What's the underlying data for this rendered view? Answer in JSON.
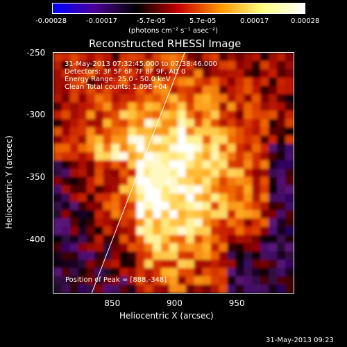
{
  "colorbar": {
    "ticks": [
      "-0.00028",
      "-0.00017",
      "-5.7e-05",
      "5.7e-05",
      "0.00017",
      "0.00028"
    ],
    "unit_label": "(photons cm⁻² s⁻¹ asec⁻²)",
    "colors": [
      "#0000ff",
      "#4b0095",
      "#000000",
      "#c80000",
      "#ff9600",
      "#ffff80",
      "#ffffff"
    ]
  },
  "chart_data": {
    "type": "heatmap",
    "title": "Reconstructed RHESSI Image",
    "xlabel": "Heliocentric X (arcsec)",
    "ylabel": "Heliocentric Y (arcsec)",
    "xlim": [
      803,
      997
    ],
    "ylim": [
      -443,
      -249
    ],
    "xticks": [
      850,
      900,
      950
    ],
    "yticks": [
      -250,
      -300,
      -350,
      -400
    ],
    "peak": {
      "x": 888,
      "y": -348
    },
    "limb_line": [
      [
        834,
        -443
      ],
      [
        909,
        -249
      ]
    ],
    "annotations": [
      "31-May-2013 07:32:45.000 to 07:38:46.000",
      "Detectors: 3F 5F 6F 7F 8F 9F, Att 0",
      "Energy Range: 25.0 - 50.0 keV",
      "Clean     Total counts: 1.09E+04"
    ],
    "peak_label": "Position of Peak = [888,-348]"
  },
  "footer": {
    "timestamp": "31-May-2013 09:23"
  }
}
